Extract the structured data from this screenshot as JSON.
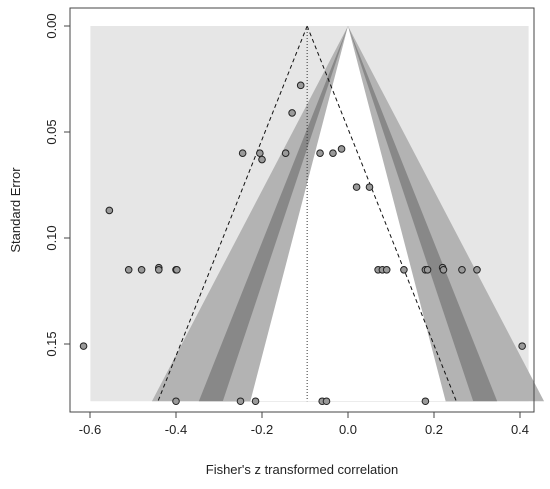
{
  "chart_data": {
    "type": "scatter",
    "subtype": "contour-enhanced funnel plot",
    "title": "",
    "xlabel": "Fisher's z transformed correlation",
    "ylabel": "Standard Error",
    "xlim": [
      -0.62,
      0.42
    ],
    "ylim": [
      0,
      0.177
    ],
    "y_reversed": true,
    "x_ticks": [
      -0.6,
      -0.4,
      -0.2,
      0.0,
      0.2,
      0.4
    ],
    "x_tick_labels": [
      "-0.6",
      "-0.4",
      "-0.2",
      "0.0",
      "0.2",
      "0.4"
    ],
    "y_ticks": [
      0.0,
      0.05,
      0.1,
      0.15
    ],
    "y_tick_labels": [
      "0.00",
      "0.05",
      "0.10",
      "0.15"
    ],
    "summary_estimate": -0.095,
    "contour_z_values": [
      1.645,
      1.96,
      2.576
    ],
    "colors": {
      "background": "#e6e6e6",
      "inner_region": "#ffffff",
      "band_90": "#b3b3b3",
      "band_95": "#888888",
      "band_99": "#b3b3b3",
      "points": "#9a9a9a"
    },
    "points": [
      {
        "x": -0.615,
        "y": 0.151
      },
      {
        "x": -0.555,
        "y": 0.087
      },
      {
        "x": -0.51,
        "y": 0.115
      },
      {
        "x": -0.48,
        "y": 0.115
      },
      {
        "x": -0.44,
        "y": 0.114
      },
      {
        "x": -0.44,
        "y": 0.115
      },
      {
        "x": -0.4,
        "y": 0.115
      },
      {
        "x": -0.398,
        "y": 0.115
      },
      {
        "x": -0.4,
        "y": 0.177
      },
      {
        "x": -0.245,
        "y": 0.06
      },
      {
        "x": -0.205,
        "y": 0.06
      },
      {
        "x": -0.2,
        "y": 0.063
      },
      {
        "x": -0.145,
        "y": 0.06
      },
      {
        "x": -0.13,
        "y": 0.041
      },
      {
        "x": -0.11,
        "y": 0.028
      },
      {
        "x": -0.25,
        "y": 0.177
      },
      {
        "x": -0.215,
        "y": 0.177
      },
      {
        "x": -0.065,
        "y": 0.06
      },
      {
        "x": -0.035,
        "y": 0.06
      },
      {
        "x": -0.015,
        "y": 0.058
      },
      {
        "x": -0.06,
        "y": 0.177
      },
      {
        "x": -0.05,
        "y": 0.177
      },
      {
        "x": 0.02,
        "y": 0.076
      },
      {
        "x": 0.05,
        "y": 0.076
      },
      {
        "x": 0.07,
        "y": 0.115
      },
      {
        "x": 0.08,
        "y": 0.115
      },
      {
        "x": 0.09,
        "y": 0.115
      },
      {
        "x": 0.13,
        "y": 0.115
      },
      {
        "x": 0.18,
        "y": 0.115
      },
      {
        "x": 0.185,
        "y": 0.115
      },
      {
        "x": 0.22,
        "y": 0.114
      },
      {
        "x": 0.222,
        "y": 0.115
      },
      {
        "x": 0.265,
        "y": 0.115
      },
      {
        "x": 0.3,
        "y": 0.115
      },
      {
        "x": 0.18,
        "y": 0.177
      },
      {
        "x": 0.405,
        "y": 0.151
      }
    ]
  }
}
